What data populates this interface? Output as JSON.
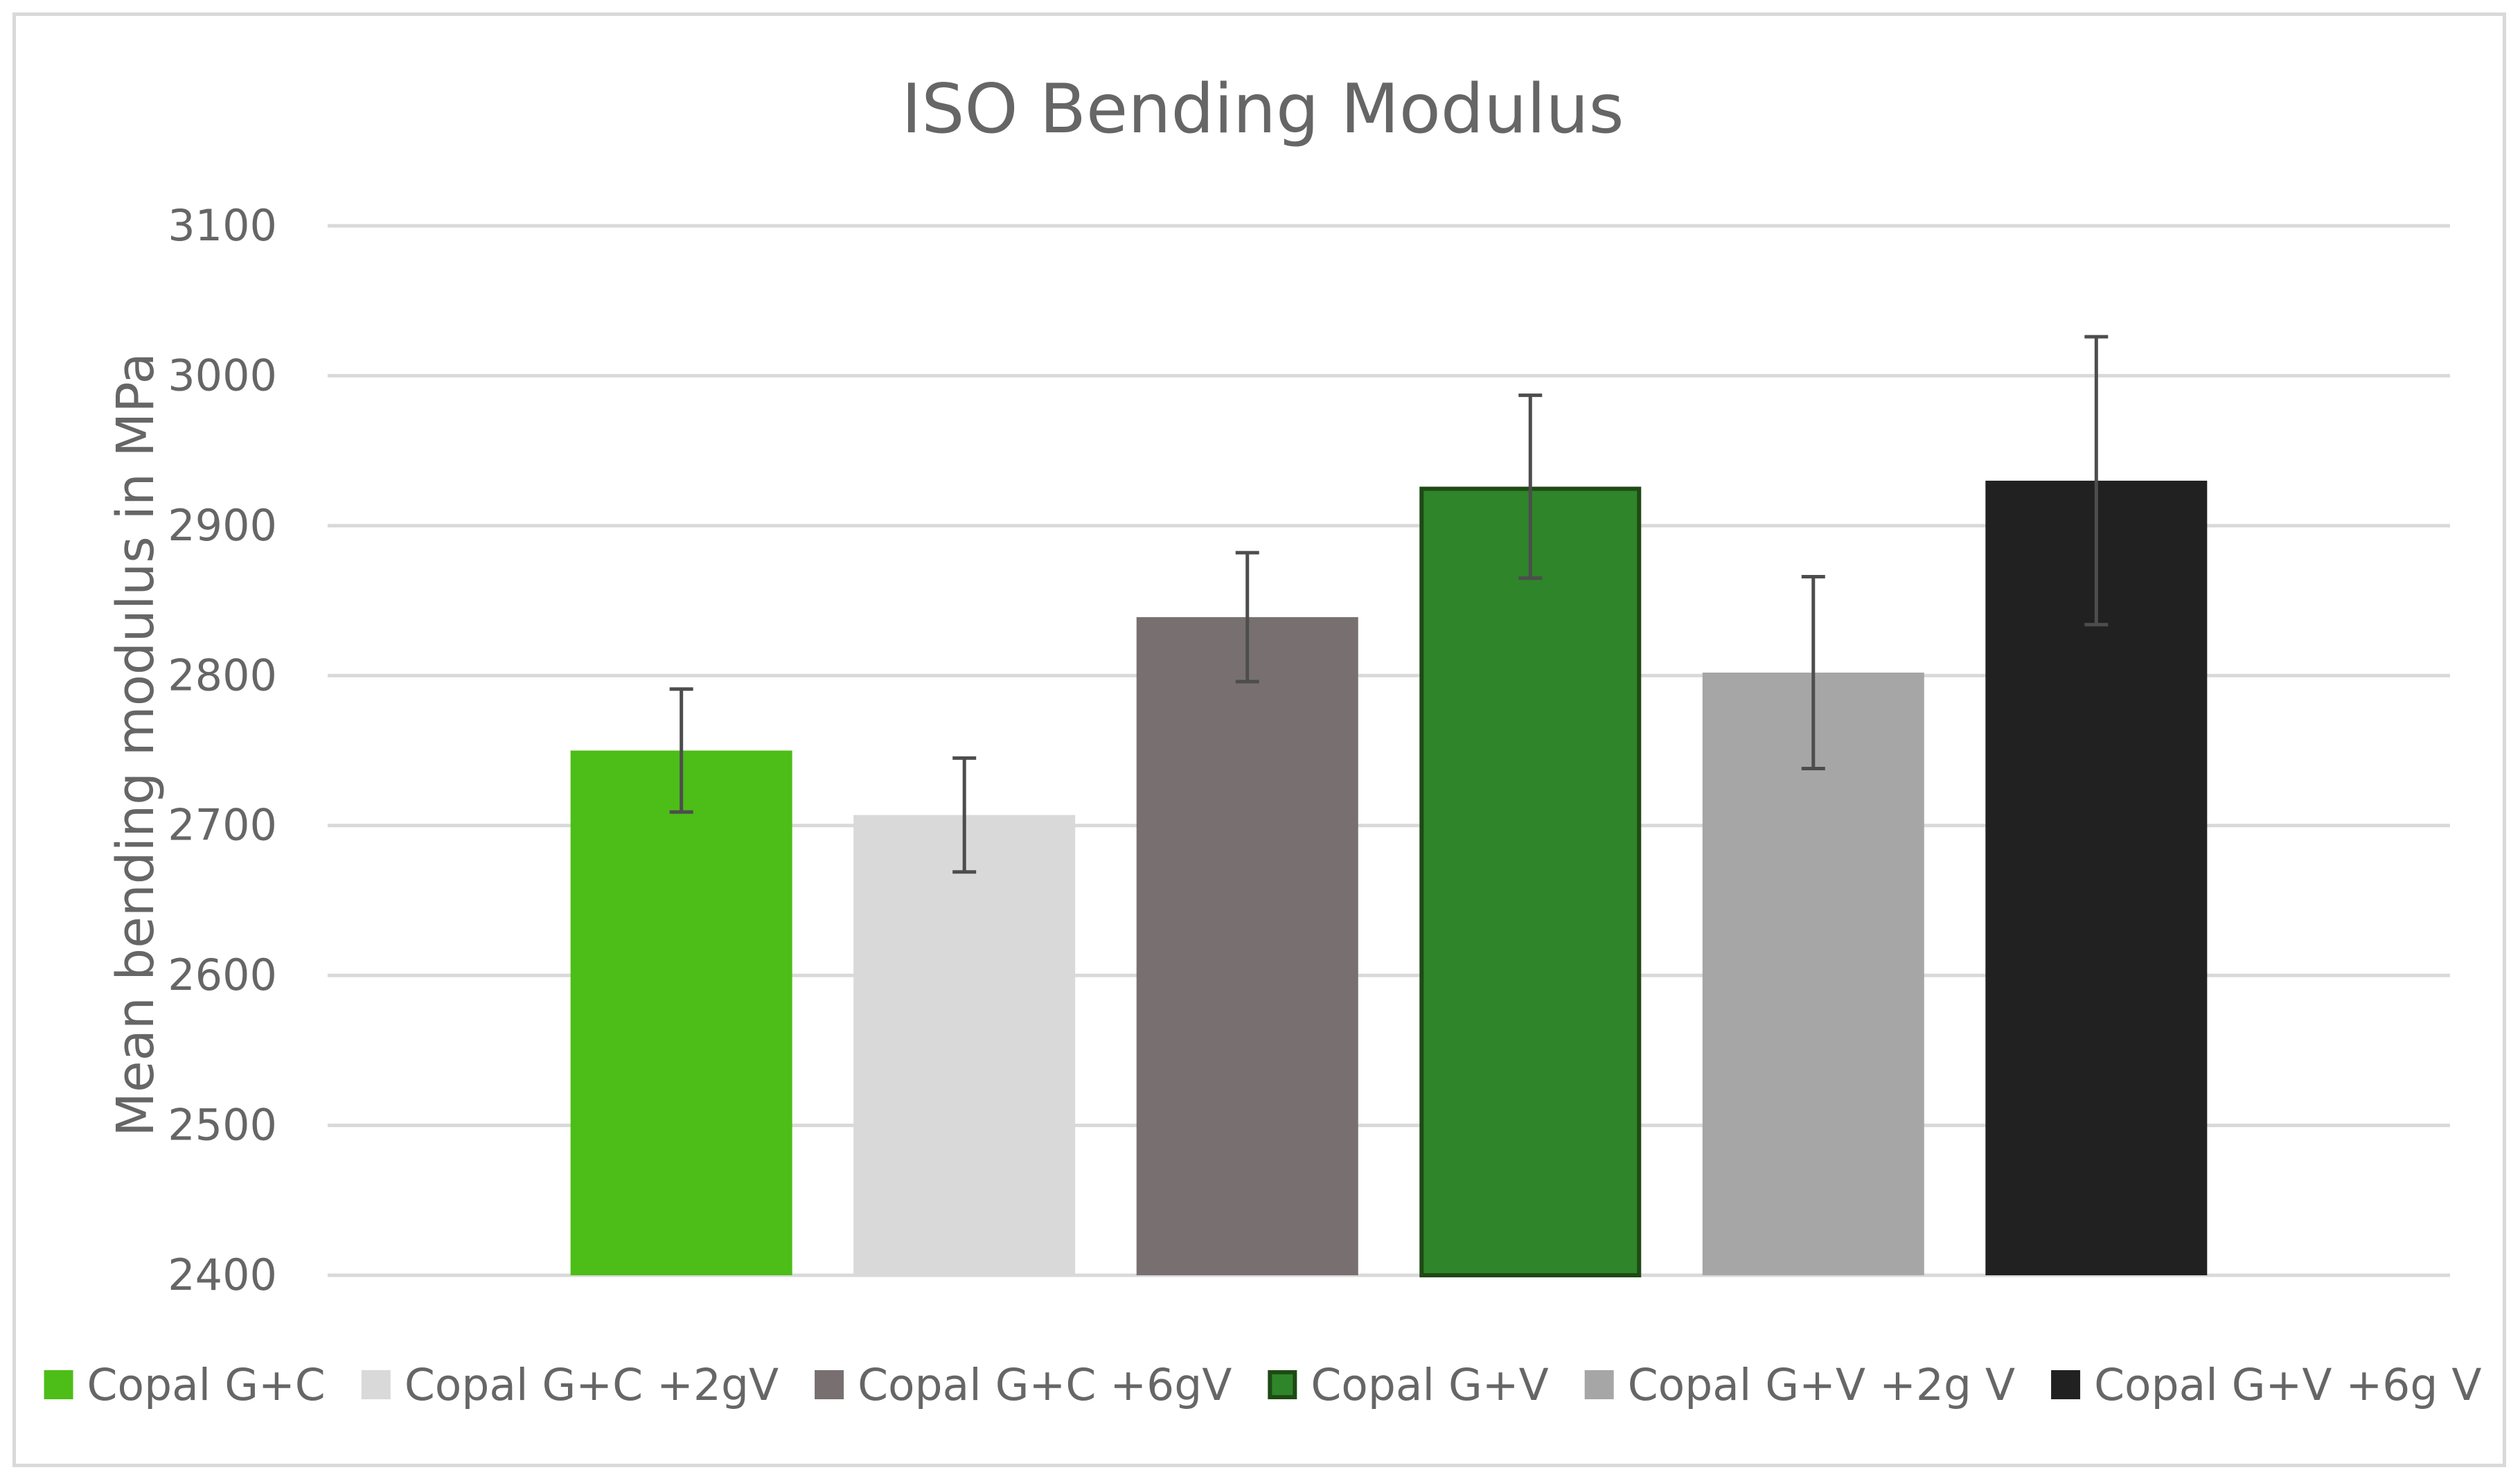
{
  "chart_data": {
    "type": "bar",
    "title": "ISO Bending Modulus",
    "xlabel": "",
    "ylabel": "Mean bending modulus in MPa",
    "ylim": [
      2400,
      3100
    ],
    "yticks": [
      3100,
      3000,
      2900,
      2800,
      2700,
      2600,
      2500,
      2400
    ],
    "grid": true,
    "legend_position": "bottom",
    "series": [
      {
        "name": "Copal G+C",
        "value": 2750,
        "error": 41,
        "color": "#4dbd17",
        "border": "#4dbd17"
      },
      {
        "name": "Copal G+C +2gV",
        "value": 2707,
        "error": 38,
        "color": "#d9d9d9",
        "border": "#d9d9d9"
      },
      {
        "name": "Copal G+C +6gV",
        "value": 2839,
        "error": 43,
        "color": "#787070",
        "border": "#787070"
      },
      {
        "name": "Copal G+V",
        "value": 2926,
        "error": 61,
        "color": "#2f852a",
        "border": "#1e4a14"
      },
      {
        "name": "Copal G+V +2g V",
        "value": 2802,
        "error": 64,
        "color": "#a6a6a6",
        "border": "#a6a6a6"
      },
      {
        "name": "Copal G+V +6g V",
        "value": 2930,
        "error": 96,
        "color": "#212121",
        "border": "#212121"
      }
    ],
    "colors": {
      "grid": "#d9d9d9",
      "text": "#666666",
      "error_bar": "#4d4d4d"
    }
  }
}
